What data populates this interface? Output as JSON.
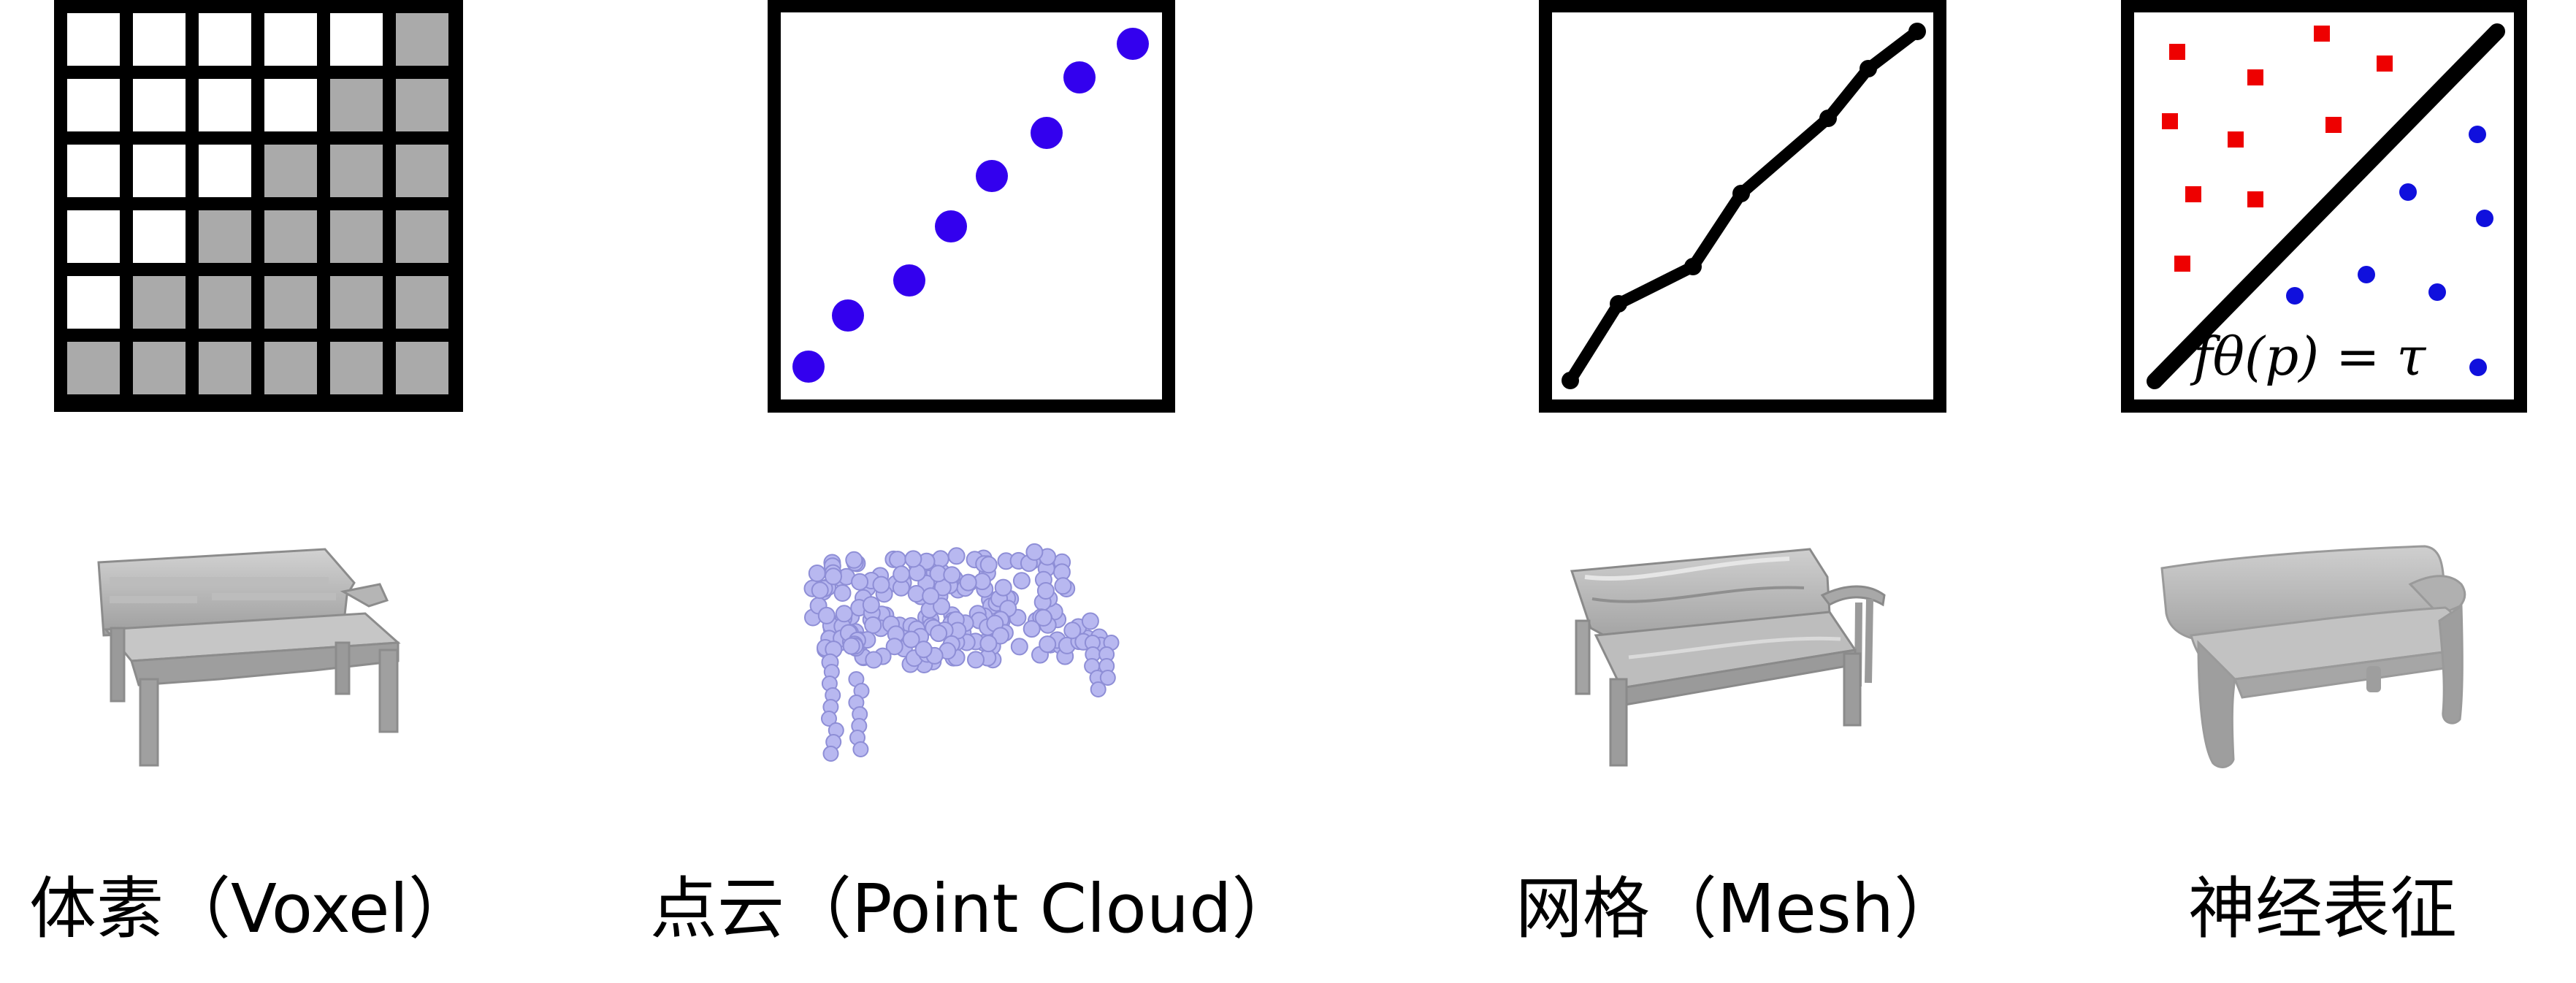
{
  "colors": {
    "frame": "#000000",
    "voxel_filled": "#aaaaaa",
    "voxel_empty": "#ffffff",
    "point_blue": "#3300ee",
    "class_red": "#ee0000",
    "class_blue": "#1010dd",
    "render_gray": "#b8b8b8",
    "render_pointcloud": "#b8b8f0"
  },
  "panels": [
    {
      "id": "voxel",
      "caption": "体素（Voxel）",
      "voxel_grid": [
        [
          0,
          0,
          0,
          0,
          0,
          1
        ],
        [
          0,
          0,
          0,
          0,
          1,
          1
        ],
        [
          0,
          0,
          0,
          1,
          1,
          1
        ],
        [
          0,
          0,
          1,
          1,
          1,
          1
        ],
        [
          0,
          1,
          1,
          1,
          1,
          1
        ],
        [
          1,
          1,
          1,
          1,
          1,
          1
        ]
      ]
    },
    {
      "id": "point-cloud",
      "caption": "点云（Point Cloud）",
      "icon": "diagonal-points-icon"
    },
    {
      "id": "mesh",
      "caption": "网格（Mesh）",
      "icon": "polyline-icon"
    },
    {
      "id": "neural",
      "caption": "神经表征",
      "icon": "decision-boundary-icon",
      "formula": "fθ(p) = τ"
    }
  ]
}
